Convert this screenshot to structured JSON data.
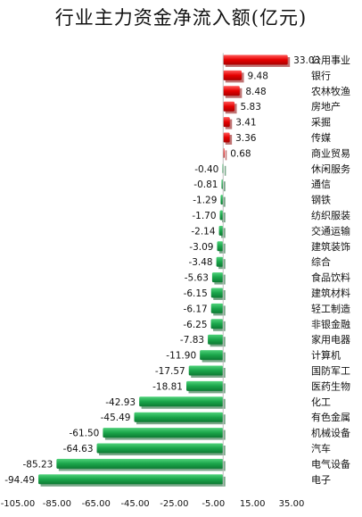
{
  "chart_data": {
    "type": "bar",
    "orientation": "horizontal",
    "title": "行业主力资金净流入额(亿元)",
    "xlabel": "",
    "ylabel": "",
    "xlim": [
      -105,
      35
    ],
    "xticks": [
      "-105.00",
      "-85.00",
      "-65.00",
      "-45.00",
      "-25.00",
      "-5.00",
      "15.00",
      "35.00"
    ],
    "grid": false,
    "legend": "none",
    "categories": [
      "公用事业",
      "银行",
      "农林牧渔",
      "房地产",
      "采掘",
      "传媒",
      "商业贸易",
      "休闲服务",
      "通信",
      "钢铁",
      "纺织服装",
      "交通运输",
      "建筑装饰",
      "综合",
      "食品饮料",
      "建筑材料",
      "轻工制造",
      "非银金融",
      "家用电器",
      "计算机",
      "国防军工",
      "医药生物",
      "化工",
      "有色金属",
      "机械设备",
      "汽车",
      "电气设备",
      "电子"
    ],
    "values": [
      33.03,
      9.48,
      8.48,
      5.83,
      3.41,
      3.36,
      0.68,
      -0.4,
      -0.81,
      -1.29,
      -1.7,
      -2.14,
      -3.09,
      -3.48,
      -5.63,
      -6.15,
      -6.17,
      -6.25,
      -7.83,
      -11.9,
      -17.57,
      -18.81,
      -42.93,
      -45.49,
      -61.5,
      -64.63,
      -85.23,
      -94.49
    ],
    "value_labels": [
      "33.03",
      "9.48",
      "8.48",
      "5.83",
      "3.41",
      "3.36",
      "0.68",
      "-0.40",
      "-0.81",
      "-1.29",
      "-1.70",
      "-2.14",
      "-3.09",
      "-3.48",
      "-5.63",
      "-6.15",
      "-6.17",
      "-6.25",
      "-7.83",
      "-11.90",
      "-17.57",
      "-18.81",
      "-42.93",
      "-45.49",
      "-61.50",
      "-64.63",
      "-85.23",
      "-94.49"
    ],
    "colors": {
      "positive": "#e60000",
      "negative": "#1aa54a"
    }
  }
}
